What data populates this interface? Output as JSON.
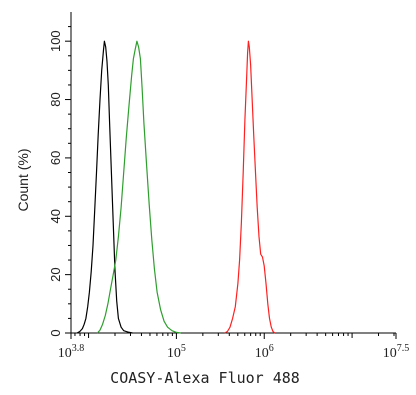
{
  "chart_data": {
    "type": "line",
    "title": "",
    "xlabel": "COASY-Alexa Fluor 488",
    "ylabel": "Count (%)",
    "x_scale": "log10",
    "xlim": [
      6309.57,
      31622776.6
    ],
    "ylim": [
      0,
      110
    ],
    "x_ticks": [
      {
        "base": "10",
        "exp": "3.8",
        "value": 6309.57
      },
      {
        "base": "10",
        "exp": "5",
        "value": 100000
      },
      {
        "base": "10",
        "exp": "6",
        "value": 1000000
      },
      {
        "base": "10",
        "exp": "7.5",
        "value": 31622776.6
      }
    ],
    "y_ticks": [
      "0",
      "20",
      "40",
      "60",
      "80",
      "100"
    ],
    "y_tick_values": [
      0,
      20,
      40,
      60,
      80,
      100
    ],
    "grid": false,
    "series": [
      {
        "color": "#000000",
        "points": [
          [
            3.87,
            0
          ],
          [
            3.9,
            0.5
          ],
          [
            3.93,
            1.5
          ],
          [
            3.95,
            3
          ],
          [
            3.97,
            5
          ],
          [
            3.99,
            9
          ],
          [
            4.01,
            14
          ],
          [
            4.03,
            21
          ],
          [
            4.05,
            30
          ],
          [
            4.07,
            42
          ],
          [
            4.09,
            55
          ],
          [
            4.11,
            68
          ],
          [
            4.13,
            80
          ],
          [
            4.15,
            90
          ],
          [
            4.17,
            97
          ],
          [
            4.18,
            100
          ],
          [
            4.195,
            98
          ],
          [
            4.21,
            93
          ],
          [
            4.225,
            85
          ],
          [
            4.24,
            72
          ],
          [
            4.26,
            55
          ],
          [
            4.28,
            38
          ],
          [
            4.3,
            22
          ],
          [
            4.32,
            11
          ],
          [
            4.34,
            5
          ],
          [
            4.37,
            2
          ],
          [
            4.4,
            0.8
          ],
          [
            4.45,
            0.3
          ],
          [
            4.5,
            0
          ]
        ]
      },
      {
        "color": "#2e9e2e",
        "points": [
          [
            4.1,
            0
          ],
          [
            4.13,
            1
          ],
          [
            4.16,
            3
          ],
          [
            4.19,
            6
          ],
          [
            4.22,
            10
          ],
          [
            4.25,
            15
          ],
          [
            4.28,
            20
          ],
          [
            4.31,
            25
          ],
          [
            4.34,
            33
          ],
          [
            4.37,
            43
          ],
          [
            4.4,
            55
          ],
          [
            4.43,
            67
          ],
          [
            4.46,
            78
          ],
          [
            4.49,
            88
          ],
          [
            4.51,
            94
          ],
          [
            4.53,
            97
          ],
          [
            4.55,
            100
          ],
          [
            4.57,
            98
          ],
          [
            4.59,
            94
          ],
          [
            4.61,
            84
          ],
          [
            4.63,
            72
          ],
          [
            4.66,
            58
          ],
          [
            4.69,
            44
          ],
          [
            4.72,
            32
          ],
          [
            4.75,
            22
          ],
          [
            4.78,
            14
          ],
          [
            4.82,
            8
          ],
          [
            4.86,
            4
          ],
          [
            4.9,
            2
          ],
          [
            4.95,
            0.8
          ],
          [
            5.0,
            0.2
          ],
          [
            5.05,
            0
          ]
        ]
      },
      {
        "color": "#ff2020",
        "points": [
          [
            5.55,
            0
          ],
          [
            5.58,
            0.5
          ],
          [
            5.61,
            2
          ],
          [
            5.64,
            5
          ],
          [
            5.67,
            9
          ],
          [
            5.7,
            17
          ],
          [
            5.72,
            25
          ],
          [
            5.74,
            38
          ],
          [
            5.76,
            55
          ],
          [
            5.78,
            73
          ],
          [
            5.8,
            88
          ],
          [
            5.81,
            96
          ],
          [
            5.82,
            100
          ],
          [
            5.83,
            98
          ],
          [
            5.845,
            92
          ],
          [
            5.86,
            82
          ],
          [
            5.88,
            68
          ],
          [
            5.9,
            55
          ],
          [
            5.92,
            43
          ],
          [
            5.94,
            33
          ],
          [
            5.96,
            27
          ],
          [
            5.98,
            26
          ],
          [
            6.0,
            23
          ],
          [
            6.02,
            17
          ],
          [
            6.04,
            10
          ],
          [
            6.06,
            5
          ],
          [
            6.08,
            2
          ],
          [
            6.1,
            0.5
          ],
          [
            6.12,
            0
          ]
        ]
      }
    ]
  }
}
